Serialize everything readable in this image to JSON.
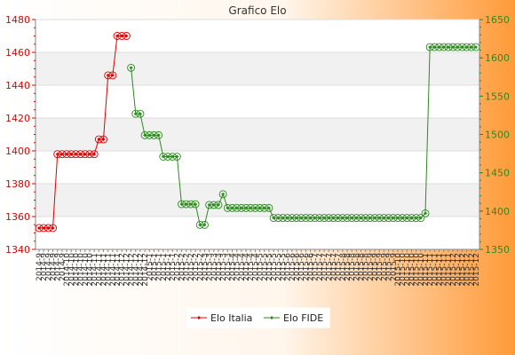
{
  "chart_data": {
    "type": "line",
    "title": "Grafico Elo",
    "y_left": {
      "min": 1340,
      "max": 1480,
      "step": 20,
      "ticks": [
        "1340",
        "1360",
        "1380",
        "1400",
        "1420",
        "1440",
        "1460",
        "1480"
      ],
      "color": "#e00000"
    },
    "y_right": {
      "min": 1350,
      "max": 1650,
      "step": 50,
      "ticks": [
        "1350",
        "1400",
        "1450",
        "1500",
        "1550",
        "1600",
        "1650"
      ],
      "color": "#2c8a1f"
    },
    "grid": true,
    "legend_position": "bottom-center",
    "x_tick_pattern": [
      "2014-9",
      "2014-10",
      "2014-11",
      "2014-12",
      "2015-1",
      "2015-2",
      "2015-3",
      "2015-4",
      "2015-5",
      "2015-6",
      "2015-7",
      "2015-8",
      "2015-9",
      "2015-10",
      "2015-11",
      "2015-12"
    ],
    "x_tick_count": 96,
    "series": [
      {
        "name": "Elo Italia",
        "axis": "left",
        "color": "#e00000",
        "points": [
          [
            0,
            1353
          ],
          [
            1,
            1353
          ],
          [
            2,
            1353
          ],
          [
            3,
            1353
          ],
          [
            4,
            1398
          ],
          [
            5,
            1398
          ],
          [
            6,
            1398
          ],
          [
            7,
            1398
          ],
          [
            8,
            1398
          ],
          [
            9,
            1398
          ],
          [
            10,
            1398
          ],
          [
            11,
            1398
          ],
          [
            12,
            1398
          ],
          [
            13,
            1407
          ],
          [
            14,
            1407
          ],
          [
            15,
            1446
          ],
          [
            16,
            1446
          ],
          [
            17,
            1470
          ],
          [
            18,
            1470
          ],
          [
            19,
            1470
          ]
        ]
      },
      {
        "name": "Elo FIDE",
        "axis": "right",
        "color": "#2c8a1f",
        "points": [
          [
            20,
            1587
          ],
          [
            21,
            1527
          ],
          [
            22,
            1527
          ],
          [
            23,
            1499
          ],
          [
            24,
            1499
          ],
          [
            25,
            1499
          ],
          [
            26,
            1499
          ],
          [
            27,
            1471
          ],
          [
            28,
            1471
          ],
          [
            29,
            1471
          ],
          [
            30,
            1471
          ],
          [
            31,
            1409
          ],
          [
            32,
            1409
          ],
          [
            33,
            1409
          ],
          [
            34,
            1409
          ],
          [
            35,
            1382
          ],
          [
            36,
            1382
          ],
          [
            37,
            1408
          ],
          [
            38,
            1408
          ],
          [
            39,
            1408
          ],
          [
            40,
            1422
          ],
          [
            41,
            1404
          ],
          [
            42,
            1404
          ],
          [
            43,
            1404
          ],
          [
            44,
            1404
          ],
          [
            45,
            1404
          ],
          [
            46,
            1404
          ],
          [
            47,
            1404
          ],
          [
            48,
            1404
          ],
          [
            49,
            1404
          ],
          [
            50,
            1404
          ],
          [
            51,
            1391
          ],
          [
            52,
            1391
          ],
          [
            53,
            1391
          ],
          [
            54,
            1391
          ],
          [
            55,
            1391
          ],
          [
            56,
            1391
          ],
          [
            57,
            1391
          ],
          [
            58,
            1391
          ],
          [
            59,
            1391
          ],
          [
            60,
            1391
          ],
          [
            61,
            1391
          ],
          [
            62,
            1391
          ],
          [
            63,
            1391
          ],
          [
            64,
            1391
          ],
          [
            65,
            1391
          ],
          [
            66,
            1391
          ],
          [
            67,
            1391
          ],
          [
            68,
            1391
          ],
          [
            69,
            1391
          ],
          [
            70,
            1391
          ],
          [
            71,
            1391
          ],
          [
            72,
            1391
          ],
          [
            73,
            1391
          ],
          [
            74,
            1391
          ],
          [
            75,
            1391
          ],
          [
            76,
            1391
          ],
          [
            77,
            1391
          ],
          [
            78,
            1391
          ],
          [
            79,
            1391
          ],
          [
            80,
            1391
          ],
          [
            81,
            1391
          ],
          [
            82,
            1391
          ],
          [
            83,
            1391
          ],
          [
            84,
            1397
          ],
          [
            85,
            1614
          ],
          [
            86,
            1614
          ],
          [
            87,
            1614
          ],
          [
            88,
            1614
          ],
          [
            89,
            1614
          ],
          [
            90,
            1614
          ],
          [
            91,
            1614
          ],
          [
            92,
            1614
          ],
          [
            93,
            1614
          ],
          [
            94,
            1614
          ],
          [
            95,
            1614
          ]
        ]
      }
    ]
  }
}
